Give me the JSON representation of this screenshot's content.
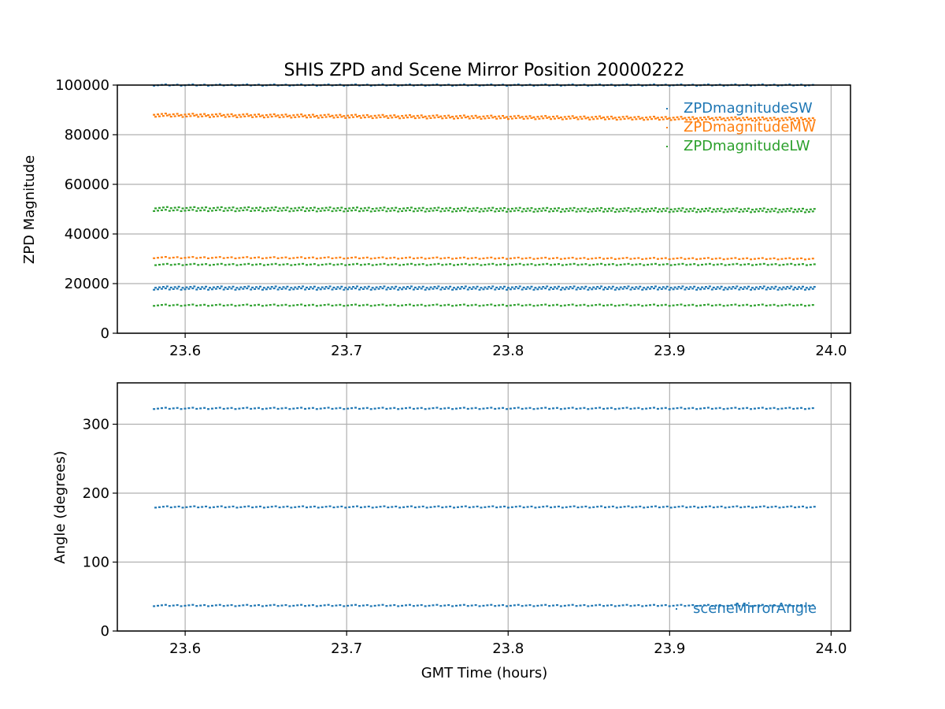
{
  "chart_data": [
    {
      "type": "scatter",
      "title": "SHIS ZPD and Scene Mirror Position 20000222",
      "xlabel": "",
      "ylabel": "ZPD Magnitude",
      "xlim": [
        23.558,
        24.012
      ],
      "ylim": [
        0,
        100000
      ],
      "xticks": [
        23.6,
        23.7,
        23.8,
        23.9,
        24.0
      ],
      "xtick_labels": [
        "23.6",
        "23.7",
        "23.8",
        "23.9",
        "24.0"
      ],
      "yticks": [
        0,
        20000,
        40000,
        60000,
        80000,
        100000
      ],
      "ytick_labels": [
        "0",
        "20000",
        "40000",
        "60000",
        "80000",
        "100000"
      ],
      "grid": true,
      "legend_position": "top-right",
      "x_range": [
        23.58,
        23.99
      ],
      "series": [
        {
          "name": "ZPDmagnitudeSW",
          "color": "#1f77b4",
          "levels": [
            17800,
            18600,
            100000
          ]
        },
        {
          "name": "ZPDmagnitudeMW",
          "color": "#ff7f0e",
          "levels_start": [
            30500,
            87500,
            88300
          ],
          "levels_end": [
            30000,
            85800,
            86600
          ]
        },
        {
          "name": "ZPDmagnitudeLW",
          "color": "#2ca02c",
          "levels_start": [
            11300,
            27700,
            49500,
            50600
          ],
          "levels_end": [
            11300,
            27700,
            49000,
            50000
          ]
        }
      ]
    },
    {
      "type": "scatter",
      "title": "",
      "xlabel": "GMT Time (hours)",
      "ylabel": "Angle (degrees)",
      "xlim": [
        23.558,
        24.012
      ],
      "ylim": [
        0,
        360
      ],
      "xticks": [
        23.6,
        23.7,
        23.8,
        23.9,
        24.0
      ],
      "xtick_labels": [
        "23.6",
        "23.7",
        "23.8",
        "23.9",
        "24.0"
      ],
      "yticks": [
        0,
        100,
        200,
        300
      ],
      "ytick_labels": [
        "0",
        "100",
        "200",
        "300"
      ],
      "grid": true,
      "legend_position": "bottom-right",
      "x_range": [
        23.58,
        23.99
      ],
      "series": [
        {
          "name": "sceneMirrorAngle",
          "color": "#1f77b4",
          "levels": [
            37,
            180,
            323
          ]
        }
      ]
    }
  ]
}
